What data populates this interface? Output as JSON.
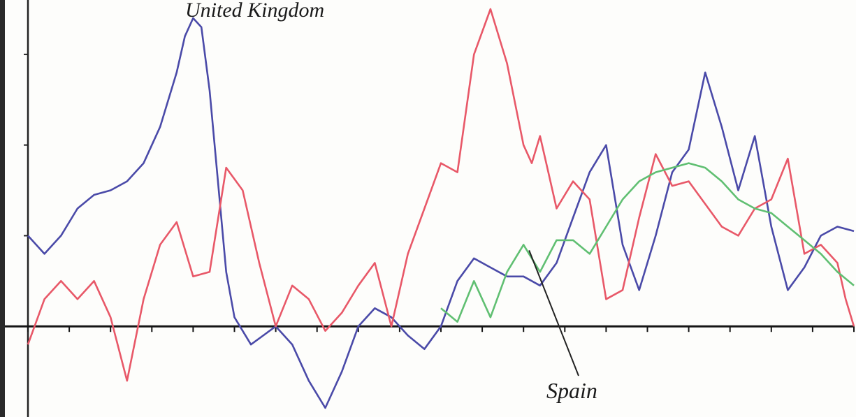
{
  "chart_data": {
    "type": "line",
    "title": "",
    "xlabel": "",
    "ylabel": "",
    "xlim": [
      0,
      100
    ],
    "ylim": [
      -1.0,
      3.6
    ],
    "grid": false,
    "yticks": [
      0,
      1,
      2,
      3
    ],
    "annotations": [
      {
        "text": "United Kingdom",
        "target": "United Kingdom"
      },
      {
        "text": "Spain",
        "target": "Spain"
      }
    ],
    "series": [
      {
        "name": "United Kingdom",
        "color": "#4a4aa8",
        "x": [
          0,
          2,
          4,
          6,
          8,
          10,
          12,
          14,
          16,
          18,
          19,
          20,
          21,
          22,
          23,
          24,
          25,
          27,
          30,
          32,
          34,
          36,
          38,
          40,
          42,
          44,
          46,
          48,
          50,
          52,
          54,
          56,
          58,
          60,
          62,
          64,
          66,
          68,
          70,
          72,
          74,
          76,
          78,
          80,
          82,
          84,
          86,
          88,
          90,
          92,
          94,
          96,
          98,
          100
        ],
        "y": [
          1.0,
          0.8,
          1.0,
          1.3,
          1.45,
          1.5,
          1.6,
          1.8,
          2.2,
          2.8,
          3.2,
          3.4,
          3.3,
          2.6,
          1.6,
          0.6,
          0.1,
          -0.2,
          0.0,
          -0.2,
          -0.6,
          -0.9,
          -0.5,
          0.0,
          0.2,
          0.1,
          -0.1,
          -0.25,
          0.0,
          0.5,
          0.75,
          0.65,
          0.55,
          0.55,
          0.45,
          0.7,
          1.2,
          1.7,
          2.0,
          0.9,
          0.4,
          1.0,
          1.7,
          1.95,
          2.8,
          2.2,
          1.5,
          2.1,
          1.1,
          0.4,
          0.65,
          1.0,
          1.1,
          1.05
        ]
      },
      {
        "name": "",
        "color": "#e85868",
        "x": [
          0,
          2,
          4,
          6,
          8,
          10,
          12,
          14,
          16,
          18,
          20,
          22,
          24,
          26,
          28,
          30,
          32,
          34,
          36,
          38,
          40,
          42,
          44,
          46,
          48,
          50,
          52,
          54,
          56,
          58,
          60,
          61,
          62,
          63,
          64,
          66,
          68,
          70,
          72,
          74,
          76,
          78,
          80,
          82,
          84,
          86,
          88,
          90,
          92,
          94,
          96,
          98,
          99,
          100
        ],
        "y": [
          -0.2,
          0.3,
          0.5,
          0.3,
          0.5,
          0.1,
          -0.6,
          0.3,
          0.9,
          1.15,
          0.55,
          0.6,
          1.75,
          1.5,
          0.7,
          0.0,
          0.45,
          0.3,
          -0.05,
          0.15,
          0.45,
          0.7,
          0.0,
          0.8,
          1.3,
          1.8,
          1.7,
          3.0,
          3.5,
          2.9,
          2.0,
          1.8,
          2.1,
          1.7,
          1.3,
          1.6,
          1.4,
          0.3,
          0.4,
          1.2,
          1.9,
          1.55,
          1.6,
          1.35,
          1.1,
          1.0,
          1.3,
          1.4,
          1.85,
          0.8,
          0.9,
          0.7,
          0.3,
          0.0
        ]
      },
      {
        "name": "Spain",
        "color": "#60bf72",
        "x": [
          50,
          52,
          54,
          56,
          58,
          60,
          62,
          64,
          66,
          68,
          70,
          72,
          74,
          76,
          78,
          80,
          82,
          84,
          86,
          88,
          90,
          92,
          94,
          96,
          98,
          100
        ],
        "y": [
          0.2,
          0.05,
          0.5,
          0.1,
          0.6,
          0.9,
          0.6,
          0.95,
          0.95,
          0.8,
          1.1,
          1.4,
          1.6,
          1.7,
          1.75,
          1.8,
          1.75,
          1.6,
          1.4,
          1.3,
          1.25,
          1.1,
          0.95,
          0.8,
          0.6,
          0.45
        ]
      }
    ]
  }
}
